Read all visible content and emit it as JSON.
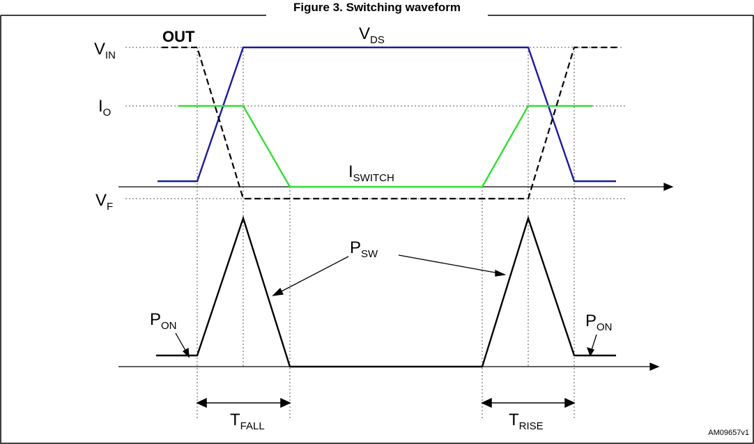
{
  "header": {
    "title": "Figure 3. Switching waveform"
  },
  "labels": {
    "vin": {
      "main": "V",
      "sub": "IN"
    },
    "out": "OUT",
    "vds": {
      "main": "V",
      "sub": "DS"
    },
    "io": {
      "main": "I",
      "sub": "O"
    },
    "iswitch": {
      "main": "I",
      "sub": "SWITCH"
    },
    "vf": {
      "main": "V",
      "sub": "F"
    },
    "psw": {
      "main": "P",
      "sub": "SW"
    },
    "pon_left": {
      "main": "P",
      "sub": "ON"
    },
    "pon_right": {
      "main": "P",
      "sub": "ON"
    },
    "tfall": {
      "main": "T",
      "sub": "FALL"
    },
    "trise": {
      "main": "T",
      "sub": "RISE"
    },
    "figure_code": "AM09657v1"
  },
  "colors": {
    "vds_line": "#1a1a9e",
    "current_line": "#33dd33",
    "out_line": "#000000",
    "power_line": "#000000",
    "guides": "#555555",
    "frame": "#000000"
  }
}
